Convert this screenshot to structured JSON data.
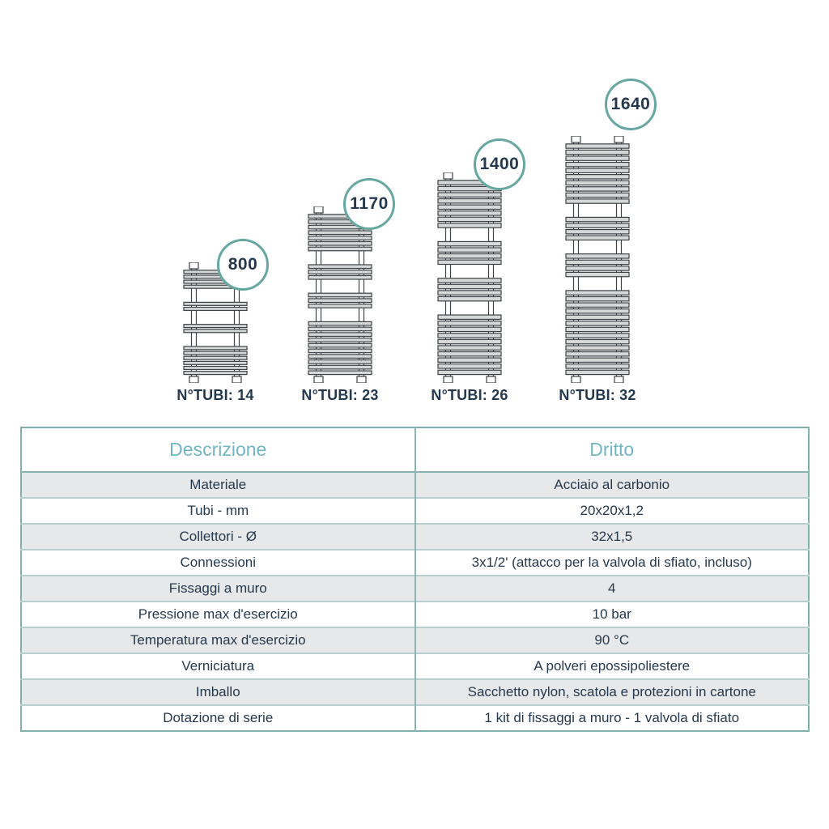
{
  "figure": {
    "radiators": [
      {
        "height_mm": 800,
        "tubi_label": "N°TUBI: 14",
        "bar_groups": [
          4,
          2,
          2,
          6
        ]
      },
      {
        "height_mm": 1170,
        "tubi_label": "N°TUBI: 23",
        "bar_groups": [
          7,
          3,
          3,
          10
        ]
      },
      {
        "height_mm": 1400,
        "tubi_label": "N°TUBI: 26",
        "bar_groups": [
          8,
          4,
          4,
          10
        ]
      },
      {
        "height_mm": 1640,
        "tubi_label": "N°TUBI: 32",
        "bar_groups": [
          10,
          4,
          4,
          14
        ]
      }
    ]
  },
  "table": {
    "columns": [
      "Descrizione",
      "Dritto"
    ],
    "rows": [
      {
        "label": "Materiale",
        "value": "Acciaio al carbonio"
      },
      {
        "label": "Tubi - mm",
        "value": "20x20x1,2"
      },
      {
        "label": "Collettori - Ø",
        "value": "32x1,5"
      },
      {
        "label": "Connessioni",
        "value": "3x1/2' (attacco per la valvola di sfiato, incluso)"
      },
      {
        "label": "Fissaggi a muro",
        "value": "4"
      },
      {
        "label": "Pressione max d'esercizio",
        "value": "10 bar"
      },
      {
        "label": "Temperatura max d'esercizio",
        "value": "90 °C"
      },
      {
        "label": "Verniciatura",
        "value": "A polveri epossipoliestere"
      },
      {
        "label": "Imballo",
        "value": "Sacchetto nylon, scatola e protezioni in cartone"
      },
      {
        "label": "Dotazione di serie",
        "value": "1 kit di fissaggi a muro - 1 valvola di sfiato"
      }
    ]
  },
  "colors": {
    "accent_teal_border": "#67a7a1",
    "header_teal_text": "#71b6c2",
    "navy_text": "#25394e",
    "row_gray": "#e7e8ea",
    "table_border_outer": "#7fb0ac",
    "table_border_row": "#b7d0ce",
    "radiator_bar_fill": "#d6d7d7",
    "radiator_outline": "#3c4245"
  }
}
